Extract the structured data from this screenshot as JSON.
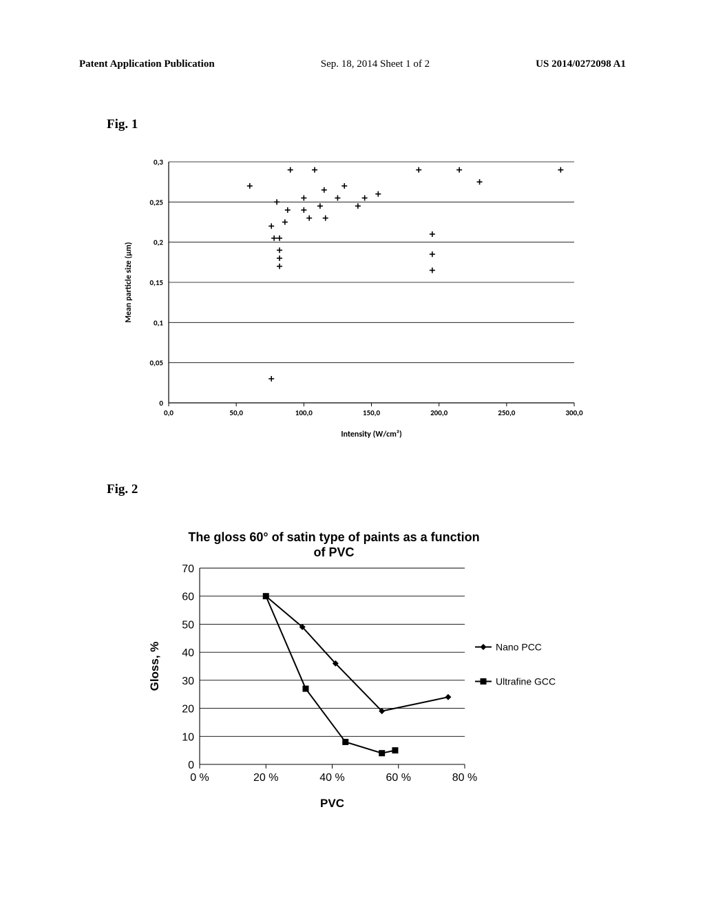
{
  "header": {
    "left": "Patent Application Publication",
    "center": "Sep. 18, 2014  Sheet 1 of 2",
    "right": "US 2014/0272098 A1"
  },
  "fig1": {
    "label": "Fig. 1",
    "type": "scatter",
    "xlabel": "Intensity (W/cm²)",
    "ylabel": "Mean particle size (μm)",
    "label_fontsize": 12,
    "label_fontweight": "bold",
    "label_fontfamily": "Calibri, sans-serif",
    "xlim": [
      0,
      300
    ],
    "ylim": [
      0,
      0.3
    ],
    "xtick_step": 50,
    "ytick_step": 0.05,
    "xticks": [
      "0,0",
      "50,0",
      "100,0",
      "150,0",
      "200,0",
      "250,0",
      "300,0"
    ],
    "yticks": [
      "0",
      "0,05",
      "0,1",
      "0,15",
      "0,2",
      "0,25",
      "0,3"
    ],
    "tick_fontsize": 11,
    "tick_fontfamily": "Calibri, sans-serif",
    "tick_fontweight": "bold",
    "background_color": "#ffffff",
    "grid_color": "#000000",
    "grid_linewidth": 0.8,
    "axis_color": "#000000",
    "axis_linewidth": 1.2,
    "grid_on_y": true,
    "marker_style": "plus",
    "marker_size": 8,
    "marker_color": "#000000",
    "marker_linewidth": 1.6,
    "points": [
      [
        60,
        0.27
      ],
      [
        76,
        0.03
      ],
      [
        76,
        0.22
      ],
      [
        78,
        0.205
      ],
      [
        80,
        0.25
      ],
      [
        82,
        0.17
      ],
      [
        82,
        0.18
      ],
      [
        82,
        0.19
      ],
      [
        82,
        0.205
      ],
      [
        86,
        0.225
      ],
      [
        88,
        0.24
      ],
      [
        90,
        0.29
      ],
      [
        100,
        0.24
      ],
      [
        100,
        0.255
      ],
      [
        104,
        0.23
      ],
      [
        108,
        0.29
      ],
      [
        112,
        0.245
      ],
      [
        115,
        0.265
      ],
      [
        116,
        0.23
      ],
      [
        125,
        0.255
      ],
      [
        130,
        0.27
      ],
      [
        140,
        0.245
      ],
      [
        145,
        0.255
      ],
      [
        155,
        0.26
      ],
      [
        185,
        0.29
      ],
      [
        195,
        0.165
      ],
      [
        195,
        0.185
      ],
      [
        195,
        0.21
      ],
      [
        215,
        0.29
      ],
      [
        230,
        0.275
      ],
      [
        290,
        0.29
      ]
    ]
  },
  "fig2": {
    "label": "Fig. 2",
    "type": "line",
    "title": "The gloss 60° of satin type of paints as a function of PVC",
    "title_fontsize": 18,
    "title_fontweight": "bold",
    "title_fontfamily": "Arial, sans-serif",
    "xlabel": "PVC",
    "ylabel": "Gloss, %",
    "label_fontsize": 17,
    "label_fontweight": "bold",
    "label_fontfamily": "Arial, sans-serif",
    "xlim": [
      0,
      80
    ],
    "ylim": [
      0,
      70
    ],
    "xtick_step": 20,
    "ytick_step": 10,
    "xticks": [
      "0 %",
      "20 %",
      "40 %",
      "60 %",
      "80 %"
    ],
    "yticks": [
      "0",
      "10",
      "20",
      "30",
      "40",
      "50",
      "60",
      "70"
    ],
    "tick_fontsize": 16,
    "tick_fontfamily": "Arial, sans-serif",
    "background_color": "#ffffff",
    "grid_color": "#000000",
    "grid_linewidth": 0.9,
    "axis_color": "#000000",
    "axis_linewidth": 1.1,
    "grid_on_y": true,
    "line_color": "#000000",
    "line_width": 2,
    "series": [
      {
        "name": "Nano PCC",
        "legend_label": "Nano PCC",
        "marker": "diamond",
        "marker_size": 9,
        "marker_fill": "#000000",
        "points": [
          [
            20,
            60
          ],
          [
            31,
            49
          ],
          [
            41,
            36
          ],
          [
            55,
            19
          ],
          [
            75,
            24
          ]
        ]
      },
      {
        "name": "Ultrafine GCC",
        "legend_label": "Ultrafine GCC",
        "marker": "square",
        "marker_size": 9,
        "marker_fill": "#000000",
        "points": [
          [
            20,
            60
          ],
          [
            32,
            27
          ],
          [
            44,
            8
          ],
          [
            55,
            4
          ],
          [
            59,
            5
          ]
        ]
      }
    ],
    "legend_position": "right",
    "legend_fontsize": 14,
    "legend_fontfamily": "Arial, sans-serif"
  }
}
